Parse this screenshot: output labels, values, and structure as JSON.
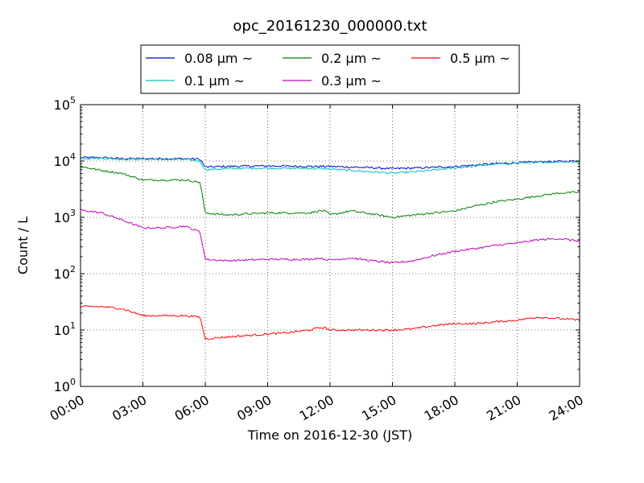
{
  "chart_data": {
    "type": "line",
    "title": "opc_20161230_000000.txt",
    "xlabel": "Time on 2016-12-30 (JST)",
    "ylabel": "Count / L",
    "yscale": "log",
    "ylim": [
      1,
      100000
    ],
    "xlim": [
      "00:00",
      "24:00"
    ],
    "x_ticks": [
      "00:00",
      "03:00",
      "06:00",
      "09:00",
      "12:00",
      "15:00",
      "18:00",
      "21:00",
      "24:00"
    ],
    "y_ticks": [
      {
        "base": "10",
        "exp": "0"
      },
      {
        "base": "10",
        "exp": "1"
      },
      {
        "base": "10",
        "exp": "2"
      },
      {
        "base": "10",
        "exp": "3"
      },
      {
        "base": "10",
        "exp": "4"
      },
      {
        "base": "10",
        "exp": "5"
      }
    ],
    "grid": true,
    "legend_position": "top",
    "x": [
      "00:00",
      "01:00",
      "02:00",
      "03:00",
      "04:00",
      "05:00",
      "05:45",
      "06:00",
      "07:00",
      "08:00",
      "09:00",
      "10:00",
      "11:00",
      "11:30",
      "11:45",
      "12:00",
      "13:00",
      "14:00",
      "15:00",
      "16:00",
      "17:00",
      "18:00",
      "19:00",
      "20:00",
      "21:00",
      "22:00",
      "23:00",
      "24:00"
    ],
    "series": [
      {
        "name": "0.08 μm ~",
        "color": "#0000cc",
        "values": [
          11500,
          11500,
          11000,
          11000,
          11000,
          11000,
          10800,
          7800,
          8000,
          8100,
          8200,
          8100,
          8000,
          8000,
          8000,
          8000,
          7800,
          7600,
          7300,
          7500,
          7700,
          8000,
          8500,
          9000,
          9300,
          9600,
          9800,
          10000
        ]
      },
      {
        "name": "0.1 μm ~",
        "color": "#00bfbf",
        "values": [
          11200,
          11200,
          10800,
          10800,
          10700,
          10600,
          10000,
          7000,
          7300,
          7400,
          7500,
          7400,
          7400,
          7300,
          7300,
          7200,
          6800,
          6400,
          6100,
          6400,
          6900,
          7500,
          8200,
          8800,
          9200,
          9500,
          9700,
          9800
        ]
      },
      {
        "name": "0.2 μm ~",
        "color": "#007f00",
        "values": [
          8000,
          6800,
          6000,
          4600,
          4600,
          4600,
          4200,
          1200,
          1100,
          1150,
          1200,
          1200,
          1200,
          1300,
          1300,
          1100,
          1300,
          1150,
          1000,
          1100,
          1200,
          1300,
          1600,
          1900,
          2100,
          2400,
          2700,
          2800
        ]
      },
      {
        "name": "0.3 μm ~",
        "color": "#bf00bf",
        "values": [
          1350,
          1200,
          900,
          650,
          650,
          700,
          550,
          180,
          170,
          175,
          180,
          180,
          180,
          190,
          180,
          175,
          190,
          170,
          155,
          170,
          210,
          250,
          280,
          320,
          350,
          400,
          420,
          380
        ]
      },
      {
        "name": "0.5 μm ~",
        "color": "#ff0000",
        "values": [
          26,
          26,
          24,
          18,
          18,
          18,
          17,
          7,
          7.5,
          8,
          8.5,
          9,
          10,
          11,
          11,
          10,
          10,
          10,
          10,
          10.5,
          12,
          13,
          13,
          14,
          15,
          17,
          16,
          15
        ]
      }
    ]
  }
}
